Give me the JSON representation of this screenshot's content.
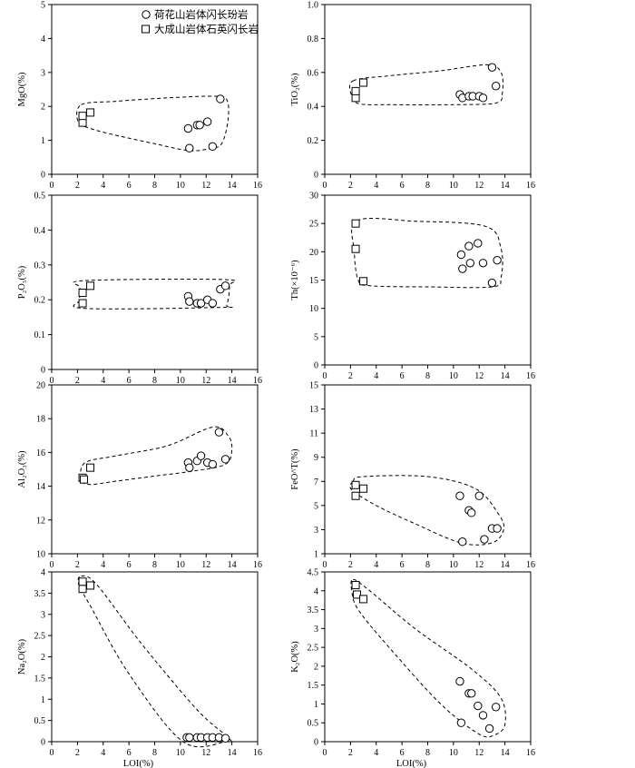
{
  "legend": [
    {
      "name": "荷花山岩体闪长玢岩",
      "marker": "circle"
    },
    {
      "name": "大成山岩体石英闪长岩",
      "marker": "square"
    }
  ],
  "chart_data": [
    {
      "type": "scatter",
      "ylabel": "MgO(%)",
      "xlabel": "",
      "xlim": [
        0,
        16
      ],
      "ylim": [
        0,
        5
      ],
      "yticks": [
        "0",
        "1",
        "2",
        "3",
        "4",
        "5"
      ],
      "xticks": [
        "0",
        "2",
        "4",
        "6",
        "8",
        "10",
        "12",
        "14",
        "16"
      ],
      "series": [
        {
          "name": "荷花山岩体闪长玢岩",
          "marker": "circle",
          "x": [
            10.6,
            10.7,
            11.3,
            11.5,
            12.1,
            12.5,
            13.1
          ],
          "y": [
            1.35,
            0.77,
            1.45,
            1.45,
            1.55,
            0.82,
            2.22
          ]
        },
        {
          "name": "大成山岩体石英闪长岩",
          "marker": "square",
          "x": [
            2.4,
            2.4,
            3.0
          ],
          "y": [
            1.52,
            1.72,
            1.82
          ]
        }
      ],
      "envelope": [
        [
          2.3,
          2.05
        ],
        [
          5,
          2.15
        ],
        [
          9,
          2.25
        ],
        [
          12.5,
          2.3
        ],
        [
          13.6,
          2.2
        ],
        [
          13.7,
          1.6
        ],
        [
          13.2,
          0.9
        ],
        [
          12.2,
          0.75
        ],
        [
          10.6,
          0.7
        ],
        [
          8,
          0.9
        ],
        [
          5,
          1.15
        ],
        [
          3,
          1.35
        ],
        [
          2.05,
          1.55
        ]
      ]
    },
    {
      "type": "scatter",
      "ylabel": "TiO₂(%)",
      "xlabel": "",
      "xlim": [
        0,
        16
      ],
      "ylim": [
        0,
        1.0
      ],
      "yticks": [
        "0",
        "0.2",
        "0.4",
        "0.6",
        "0.8",
        "1.0"
      ],
      "xticks": [
        "0",
        "2",
        "4",
        "6",
        "8",
        "10",
        "12",
        "14",
        "16"
      ],
      "series": [
        {
          "name": "荷花山岩体闪长玢岩",
          "marker": "circle",
          "x": [
            10.5,
            10.7,
            11.2,
            11.5,
            12,
            12.3,
            13,
            13.3
          ],
          "y": [
            0.47,
            0.45,
            0.46,
            0.46,
            0.46,
            0.45,
            0.63,
            0.52
          ]
        },
        {
          "name": "大成山岩体石英闪长岩",
          "marker": "square",
          "x": [
            2.4,
            2.4,
            3.0
          ],
          "y": [
            0.45,
            0.49,
            0.54
          ]
        }
      ],
      "envelope": [
        [
          2.2,
          0.55
        ],
        [
          5,
          0.58
        ],
        [
          9,
          0.61
        ],
        [
          12.6,
          0.645
        ],
        [
          13.7,
          0.6
        ],
        [
          13.8,
          0.48
        ],
        [
          13.3,
          0.42
        ],
        [
          10,
          0.41
        ],
        [
          5,
          0.41
        ],
        [
          2.7,
          0.415
        ],
        [
          2.1,
          0.46
        ]
      ]
    },
    {
      "type": "scatter",
      "ylabel": "P₂O₅(%)",
      "xlabel": "",
      "xlim": [
        0,
        16
      ],
      "ylim": [
        0,
        0.5
      ],
      "yticks": [
        "0",
        "0.1",
        "0.2",
        "0.3",
        "0.4",
        "0.5"
      ],
      "xticks": [
        "0",
        "2",
        "4",
        "6",
        "8",
        "10",
        "12",
        "14",
        "16"
      ],
      "series": [
        {
          "name": "荷花山岩体闪长玢岩",
          "marker": "circle",
          "x": [
            10.6,
            10.7,
            11.3,
            11.6,
            12.1,
            12.5,
            13.1,
            13.5
          ],
          "y": [
            0.21,
            0.195,
            0.19,
            0.19,
            0.2,
            0.19,
            0.23,
            0.24
          ]
        },
        {
          "name": "大成山岩体石英闪长岩",
          "marker": "square",
          "x": [
            2.4,
            2.4,
            3.0
          ],
          "y": [
            0.19,
            0.22,
            0.24
          ]
        }
      ],
      "envelope": [
        [
          2.6,
          0.255
        ],
        [
          13.3,
          0.258
        ],
        [
          13.8,
          0.24
        ],
        [
          13.6,
          0.185
        ],
        [
          13.1,
          0.178
        ],
        [
          2.6,
          0.175
        ],
        [
          2.2,
          0.2
        ],
        [
          2.2,
          0.235
        ]
      ]
    },
    {
      "type": "scatter",
      "ylabel": "Th(×10⁻⁶)",
      "xlabel": "",
      "xlim": [
        0,
        16
      ],
      "ylim": [
        0,
        30
      ],
      "yticks": [
        "0",
        "5",
        "10",
        "15",
        "20",
        "25",
        "30"
      ],
      "xticks": [
        "0",
        "2",
        "4",
        "6",
        "8",
        "10",
        "12",
        "14",
        "16"
      ],
      "series": [
        {
          "name": "荷花山岩体闪长玢岩",
          "marker": "circle",
          "x": [
            10.6,
            10.7,
            11.2,
            11.3,
            11.9,
            12.3,
            13,
            13.4
          ],
          "y": [
            19.5,
            17,
            21,
            18,
            21.5,
            18,
            14.5,
            18.5
          ]
        },
        {
          "name": "大成山岩体石英闪长岩",
          "marker": "square",
          "x": [
            2.4,
            2.4,
            3.0
          ],
          "y": [
            20.5,
            25,
            14.8
          ]
        }
      ],
      "envelope": [
        [
          2.5,
          25.5
        ],
        [
          7,
          25.4
        ],
        [
          12.5,
          24.5
        ],
        [
          13.7,
          20.5
        ],
        [
          13.7,
          15.5
        ],
        [
          13,
          13.8
        ],
        [
          8,
          13.8
        ],
        [
          3.5,
          14
        ],
        [
          2.6,
          15
        ],
        [
          2.3,
          20
        ]
      ]
    },
    {
      "type": "scatter",
      "ylabel": "Al₂O₃(%)",
      "xlabel": "",
      "xlim": [
        0,
        16
      ],
      "ylim": [
        10,
        20
      ],
      "yticks": [
        "10",
        "12",
        "14",
        "16",
        "18",
        "20"
      ],
      "xticks": [
        "0",
        "2",
        "4",
        "6",
        "8",
        "10",
        "12",
        "14",
        "16"
      ],
      "series": [
        {
          "name": "荷花山岩体闪长玢岩",
          "marker": "circle",
          "x": [
            10.6,
            10.7,
            11.3,
            11.6,
            12.1,
            12.5,
            13,
            13.5
          ],
          "y": [
            15.4,
            15.1,
            15.5,
            15.8,
            15.4,
            15.3,
            17.2,
            15.6
          ]
        },
        {
          "name": "大成山岩体石英闪长岩",
          "marker": "square",
          "x": [
            2.4,
            2.5,
            3.0
          ],
          "y": [
            14.5,
            14.4,
            15.1
          ]
        }
      ],
      "envelope": [
        [
          2.2,
          14.5
        ],
        [
          2.6,
          15.4
        ],
        [
          5,
          15.8
        ],
        [
          9,
          16.4
        ],
        [
          12.5,
          17.5
        ],
        [
          13.7,
          17
        ],
        [
          14,
          16.2
        ],
        [
          13.5,
          15.3
        ],
        [
          11,
          14.9
        ],
        [
          8,
          14.6
        ],
        [
          5,
          14.3
        ],
        [
          3,
          14.1
        ],
        [
          2.2,
          14.3
        ]
      ]
    },
    {
      "type": "scatter",
      "ylabel": "FeO^T(%)",
      "xlabel": "",
      "xlim": [
        0,
        16
      ],
      "ylim": [
        1,
        15
      ],
      "yticks": [
        "1",
        "3",
        "5",
        "7",
        "9",
        "11",
        "13",
        "15"
      ],
      "xticks": [
        "0",
        "2",
        "4",
        "6",
        "8",
        "10",
        "12",
        "14",
        "16"
      ],
      "series": [
        {
          "name": "荷花山岩体闪长玢岩",
          "marker": "circle",
          "x": [
            10.5,
            10.7,
            11.2,
            11.4,
            12,
            12.4,
            13,
            13.4
          ],
          "y": [
            5.8,
            2.0,
            4.6,
            4.4,
            5.8,
            2.2,
            3.1,
            3.1
          ]
        },
        {
          "name": "大成山岩体石英闪长岩",
          "marker": "square",
          "x": [
            2.4,
            2.4,
            3.0
          ],
          "y": [
            5.8,
            6.7,
            6.4
          ]
        }
      ],
      "envelope": [
        [
          2.2,
          7.0
        ],
        [
          3,
          7.4
        ],
        [
          8,
          7.4
        ],
        [
          11.7,
          6.4
        ],
        [
          13.5,
          4.3
        ],
        [
          13.9,
          3.0
        ],
        [
          13,
          1.9
        ],
        [
          10.6,
          1.9
        ],
        [
          7,
          3.5
        ],
        [
          4,
          5.0
        ],
        [
          2.1,
          6.3
        ]
      ]
    },
    {
      "type": "scatter",
      "ylabel": "Na₂O(%)",
      "xlabel": "LOI(%)",
      "xlim": [
        0,
        16
      ],
      "ylim": [
        0,
        4
      ],
      "yticks": [
        "0",
        "0.5",
        "1",
        "1.5",
        "2",
        "2.5",
        "3",
        "3.5",
        "4"
      ],
      "xticks": [
        "0",
        "2",
        "4",
        "6",
        "8",
        "10",
        "12",
        "14",
        "16"
      ],
      "series": [
        {
          "name": "荷花山岩体闪长玢岩",
          "marker": "circle",
          "x": [
            10.5,
            10.7,
            11.3,
            11.6,
            12.1,
            12.5,
            13,
            13.5
          ],
          "y": [
            0.1,
            0.1,
            0.1,
            0.1,
            0.1,
            0.1,
            0.1,
            0.08
          ]
        },
        {
          "name": "大成山岩体石英闪长岩",
          "marker": "square",
          "x": [
            2.4,
            2.4,
            3.0
          ],
          "y": [
            3.6,
            3.77,
            3.68
          ]
        }
      ],
      "envelope": [
        [
          2.3,
          3.9
        ],
        [
          3.5,
          3.7
        ],
        [
          7,
          2.3
        ],
        [
          11.3,
          0.75
        ],
        [
          13.7,
          0.1
        ],
        [
          13.5,
          0.0
        ],
        [
          10.2,
          0.0
        ],
        [
          6,
          1.6
        ],
        [
          3,
          3.2
        ],
        [
          2.1,
          3.7
        ]
      ]
    },
    {
      "type": "scatter",
      "ylabel": "K₂O(%)",
      "xlabel": "LOI(%)",
      "xlim": [
        0,
        16
      ],
      "ylim": [
        0,
        4.5
      ],
      "yticks": [
        "0",
        "0.5",
        "1",
        "1.5",
        "2",
        "2.5",
        "3",
        "3.5",
        "4",
        "4.5"
      ],
      "xticks": [
        "0",
        "2",
        "4",
        "6",
        "8",
        "10",
        "12",
        "14",
        "16"
      ],
      "series": [
        {
          "name": "荷花山岩体闪长玢岩",
          "marker": "circle",
          "x": [
            10.5,
            10.6,
            11.2,
            11.4,
            11.9,
            12.3,
            12.8,
            13.3
          ],
          "y": [
            1.6,
            0.5,
            1.28,
            1.28,
            0.95,
            0.7,
            0.35,
            0.92
          ]
        },
        {
          "name": "大成山岩体石英闪长岩",
          "marker": "square",
          "x": [
            2.4,
            2.5,
            3.0
          ],
          "y": [
            4.15,
            3.9,
            3.78
          ]
        }
      ],
      "envelope": [
        [
          2.2,
          4.3
        ],
        [
          3.5,
          4.0
        ],
        [
          7,
          3.0
        ],
        [
          11.5,
          1.9
        ],
        [
          13.7,
          1.15
        ],
        [
          14,
          0.45
        ],
        [
          13.2,
          0.18
        ],
        [
          12,
          0.2
        ],
        [
          9,
          1.0
        ],
        [
          5,
          2.5
        ],
        [
          2.6,
          3.5
        ],
        [
          2.1,
          4.0
        ]
      ]
    }
  ]
}
